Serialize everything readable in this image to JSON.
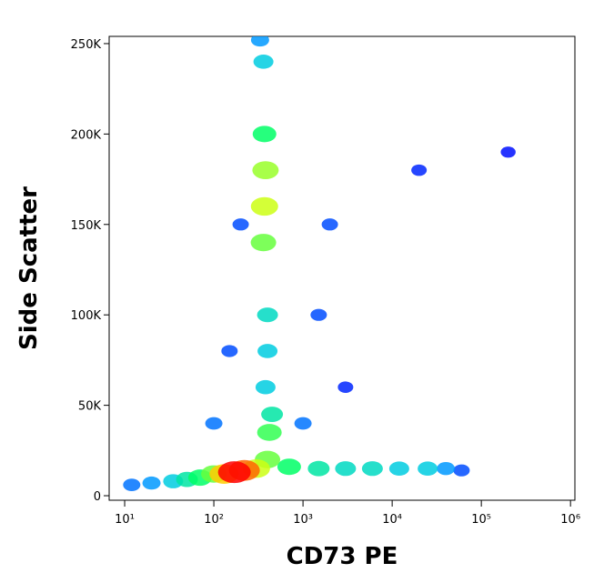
{
  "chart_data": {
    "type": "scatter",
    "x_label": "CD73 PE",
    "y_label": "Side Scatter",
    "log_x": true,
    "xlim": [
      6.7,
      1120000
    ],
    "xticks": [
      {
        "value": 10,
        "label": "10¹"
      },
      {
        "value": 100,
        "label": "10²"
      },
      {
        "value": 1000,
        "label": "10³"
      },
      {
        "value": 10000,
        "label": "10⁴"
      },
      {
        "value": 100000,
        "label": "10⁵"
      },
      {
        "value": 1000000,
        "label": "10⁶"
      }
    ],
    "ylim": [
      -2500,
      254000
    ],
    "yticks": [
      0,
      {
        "value": 50000,
        "label": "50K"
      },
      {
        "value": 100000,
        "label": "100K"
      },
      {
        "value": 150000,
        "label": "150K"
      },
      {
        "value": 200000,
        "label": "200K"
      },
      {
        "value": 250000,
        "label": "250K"
      }
    ],
    "colormap": [
      "#0000ff",
      "#00bfff",
      "#00ff66",
      "#ffff00",
      "#ff0000"
    ],
    "x": [
      200000,
      3000,
      20000,
      60000,
      1500,
      2000,
      200,
      150,
      12,
      100,
      1000,
      20,
      330,
      40000,
      12000,
      25000,
      3000,
      6000,
      35,
      380,
      400,
      360,
      400,
      1500,
      50,
      700,
      70,
      370,
      450,
      100,
      420,
      360,
      400,
      300,
      380,
      370,
      130,
      220,
      170
    ],
    "y": [
      190000,
      60000,
      180000,
      14000,
      100000,
      150000,
      150000,
      80000,
      6000,
      40000,
      40000,
      7000,
      252000,
      15000,
      15000,
      15000,
      15000,
      15000,
      8000,
      60000,
      80000,
      240000,
      100000,
      15000,
      9000,
      16000,
      10000,
      200000,
      45000,
      12000,
      35000,
      140000,
      20000,
      15000,
      180000,
      160000,
      12000,
      14000,
      13000
    ],
    "density": [
      0.02,
      0.05,
      0.05,
      0.1,
      0.1,
      0.1,
      0.1,
      0.1,
      0.15,
      0.15,
      0.15,
      0.2,
      0.2,
      0.2,
      0.3,
      0.3,
      0.35,
      0.35,
      0.3,
      0.3,
      0.3,
      0.3,
      0.35,
      0.4,
      0.4,
      0.5,
      0.5,
      0.5,
      0.4,
      0.6,
      0.55,
      0.6,
      0.6,
      0.7,
      0.65,
      0.7,
      0.8,
      0.9,
      1.0
    ]
  }
}
